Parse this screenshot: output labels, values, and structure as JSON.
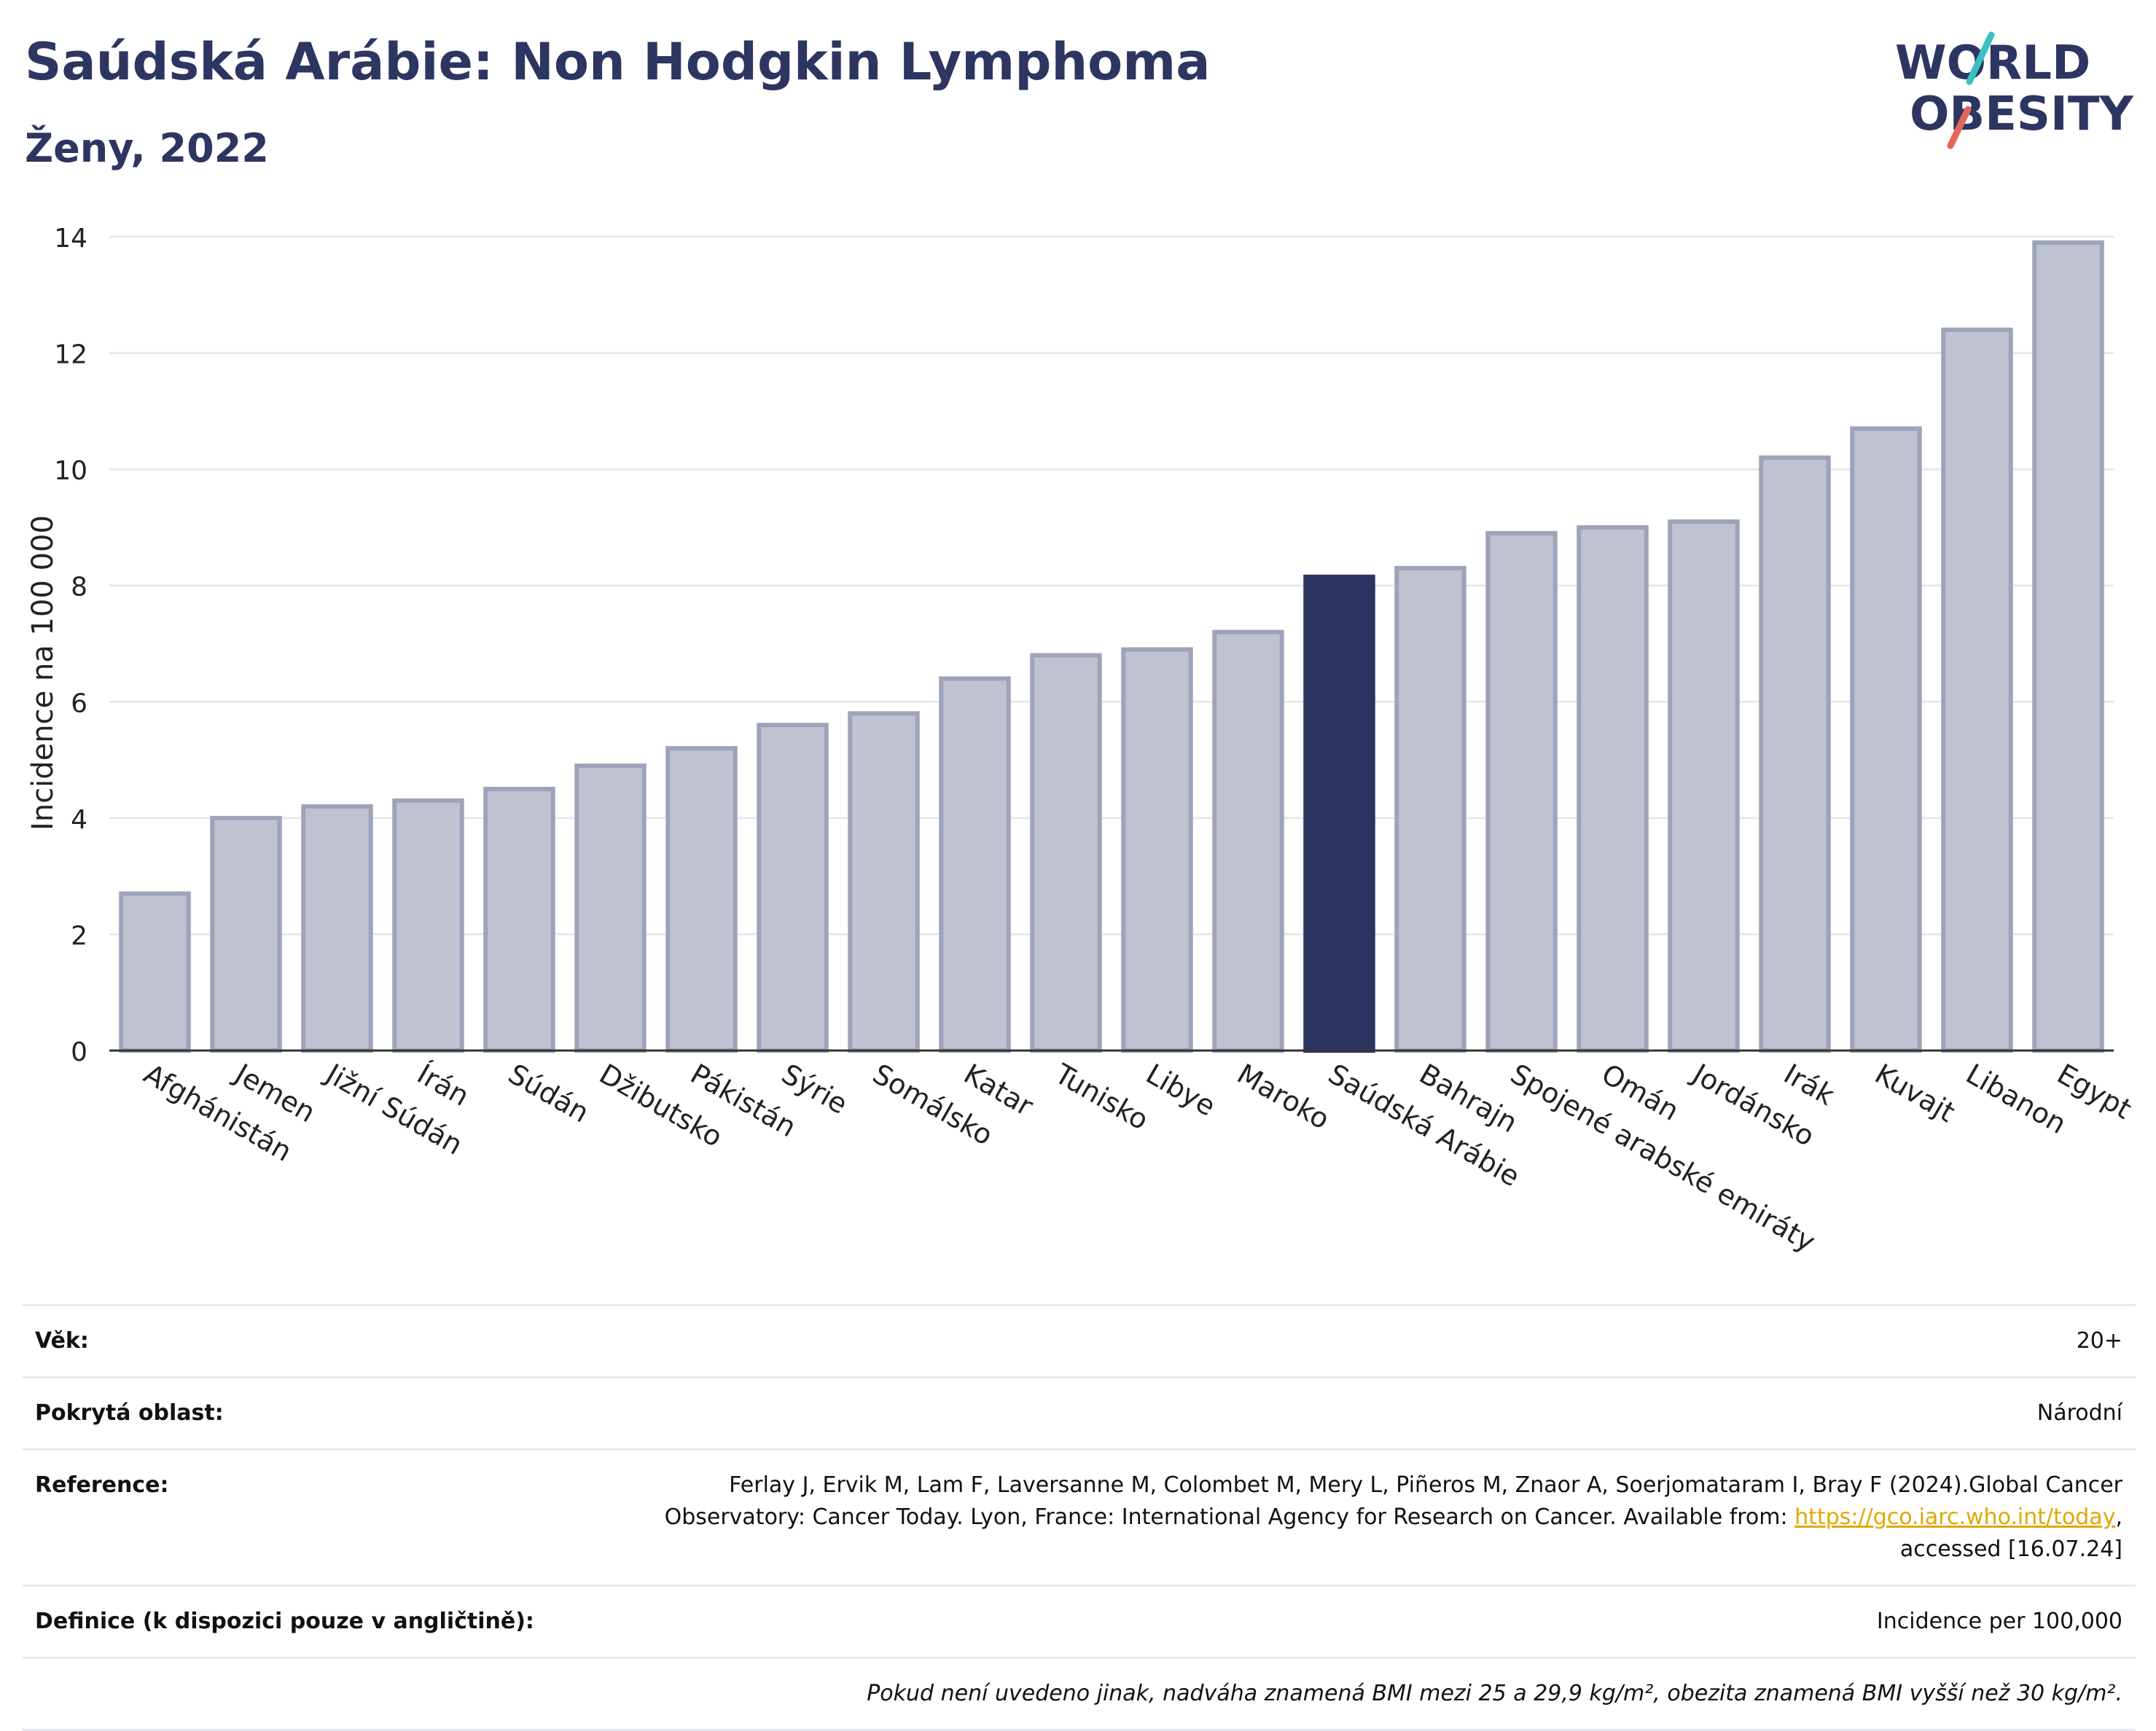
{
  "header": {
    "title": "Saúdská Arábie: Non Hodgkin Lymphoma",
    "subtitle": "Ženy, 2022"
  },
  "logo": {
    "line1": "WORLD",
    "line2": "OBESITY",
    "accent_teal": "#3bbfbf",
    "accent_red": "#e2675a"
  },
  "colors": {
    "bar": "#bfc2d1",
    "bar_stroke": "#9ea3b9",
    "highlight": "#2b3461",
    "grid": "#e6e8ee",
    "text": "#2d3561"
  },
  "chart_data": {
    "type": "bar",
    "title": "Saúdská Arábie: Non Hodgkin Lymphoma",
    "subtitle": "Ženy, 2022",
    "ylabel": "Incidence na 100 000",
    "xlabel": "",
    "ylim": [
      0,
      14
    ],
    "yticks": [
      0,
      2,
      4,
      6,
      8,
      10,
      12,
      14
    ],
    "grid": true,
    "highlight": "Saúdská Arábie",
    "categories": [
      "Afghánistán",
      "Jemen",
      "Jižní Súdán",
      "Írán",
      "Súdán",
      "Džibutsko",
      "Pákistán",
      "Sýrie",
      "Somálsko",
      "Katar",
      "Tunisko",
      "Libye",
      "Maroko",
      "Saúdská Arábie",
      "Bahrajn",
      "Spojené arabské emiráty",
      "Omán",
      "Jordánsko",
      "Irák",
      "Kuvajt",
      "Libanon",
      "Egypt"
    ],
    "values": [
      2.7,
      4.0,
      4.2,
      4.3,
      4.5,
      4.9,
      5.2,
      5.6,
      5.8,
      6.4,
      6.8,
      6.9,
      7.2,
      8.15,
      8.3,
      8.9,
      9.0,
      9.1,
      10.2,
      10.7,
      12.4,
      13.9
    ]
  },
  "info": {
    "age_label": "Věk:",
    "age_value": "20+",
    "area_label": "Pokrytá oblast:",
    "area_value": "Národní",
    "ref_label": "Reference:",
    "ref_text1": "Ferlay J, Ervik M, Lam F, Laversanne M, Colombet M, Mery L, Piñeros M, Znaor A, Soerjomataram I, Bray F (2024).Global Cancer Observatory: Cancer Today. Lyon, France: International Agency for Research on Cancer. Available from: ",
    "ref_link": "https://gco.iarc.who.int/today",
    "ref_text2": ", accessed [16.07.24]",
    "def_label": "Definice (k dispozici pouze v angličtině):",
    "def_value": "Incidence per 100,000",
    "note": "Pokud není uvedeno jinak, nadváha znamená BMI mezi 25 a 29,9 kg/m², obezita znamená BMI vyšší než 30 kg/m²."
  }
}
